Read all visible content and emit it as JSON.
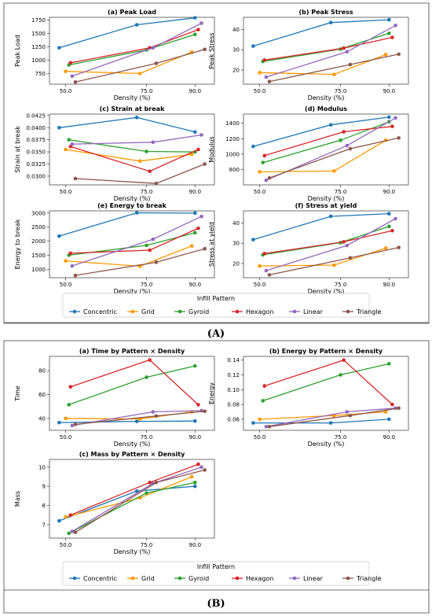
{
  "colors": {
    "Concentric": "#1f77b4",
    "Grid": "#ff9900",
    "Gyroid": "#2ca02c",
    "Hexagon": "#d62728",
    "Linear": "#9467bd",
    "Triangle": "#8c564b"
  },
  "panels": [
    {
      "label": "(A)",
      "legend_title": "Infill Pattern",
      "legend_entries": [
        "Concentric",
        "Grid",
        "Gyroid",
        "Hexagon",
        "Linear",
        "Triangle"
      ]
    },
    {
      "label": "(B)",
      "legend_title": "Infill Pattern",
      "legend_entries": [
        "Concentric",
        "Grid",
        "Gyroid",
        "Hexagon",
        "Linear",
        "Triangle"
      ]
    }
  ],
  "chart_data": [
    {
      "type": "line",
      "panel": "A",
      "title": "(a) Peak Load",
      "xlabel": "Density (%)",
      "ylabel": "Peak Load",
      "xticks": [
        "50.0",
        "75.0",
        "90.0"
      ],
      "ylim": [
        550,
        1800
      ],
      "yticks": [
        "750",
        "1000",
        "1250",
        "1500",
        "1750"
      ],
      "series": [
        {
          "name": "Concentric",
          "x": [
            48,
            72,
            90
          ],
          "y": [
            1230,
            1660,
            1790
          ]
        },
        {
          "name": "Grid",
          "x": [
            50,
            73,
            89
          ],
          "y": [
            790,
            750,
            1150
          ]
        },
        {
          "name": "Gyroid",
          "x": [
            51,
            75,
            90
          ],
          "y": [
            910,
            1190,
            1480
          ]
        },
        {
          "name": "Hexagon",
          "x": [
            51.5,
            76,
            91
          ],
          "y": [
            950,
            1230,
            1570
          ]
        },
        {
          "name": "Linear",
          "x": [
            52,
            77,
            92
          ],
          "y": [
            700,
            1230,
            1690
          ]
        },
        {
          "name": "Triangle",
          "x": [
            53,
            78,
            93
          ],
          "y": [
            590,
            940,
            1200
          ]
        }
      ]
    },
    {
      "type": "line",
      "panel": "A",
      "title": "(b) Peak Stress",
      "xlabel": "Density (%)",
      "ylabel": "Peak Stress",
      "xticks": [
        "50.0",
        "75.0",
        "90.0"
      ],
      "ylim": [
        13,
        46
      ],
      "yticks": [
        "20",
        "30",
        "40"
      ],
      "series": [
        {
          "name": "Concentric",
          "x": [
            48,
            72,
            90
          ],
          "y": [
            31.8,
            43.4,
            44.8
          ]
        },
        {
          "name": "Grid",
          "x": [
            50,
            73,
            89
          ],
          "y": [
            18.7,
            17.8,
            27.6
          ]
        },
        {
          "name": "Gyroid",
          "x": [
            51,
            75,
            90
          ],
          "y": [
            24.2,
            30.3,
            38.1
          ]
        },
        {
          "name": "Hexagon",
          "x": [
            51.5,
            76,
            91
          ],
          "y": [
            24.9,
            30.8,
            36.1
          ]
        },
        {
          "name": "Linear",
          "x": [
            52,
            77,
            92
          ],
          "y": [
            16.5,
            29.0,
            42.0
          ]
        },
        {
          "name": "Triangle",
          "x": [
            53,
            78,
            93
          ],
          "y": [
            14.3,
            22.7,
            27.8
          ]
        }
      ]
    },
    {
      "type": "line",
      "panel": "A",
      "title": "(c) Strain at break",
      "xlabel": "Density (%)",
      "ylabel": "Strain at break",
      "xticks": [
        "50.0",
        "75.0",
        "90.0"
      ],
      "ylim": [
        0.0282,
        0.0428
      ],
      "yticks": [
        "0.0300",
        "0.0325",
        "0.0350",
        "0.0375",
        "0.0400",
        "0.0425"
      ],
      "series": [
        {
          "name": "Concentric",
          "x": [
            48,
            72,
            90
          ],
          "y": [
            0.04,
            0.0421,
            0.0391
          ]
        },
        {
          "name": "Grid",
          "x": [
            50,
            73,
            89
          ],
          "y": [
            0.0355,
            0.0331,
            0.0345
          ]
        },
        {
          "name": "Gyroid",
          "x": [
            51,
            75,
            90
          ],
          "y": [
            0.0375,
            0.0351,
            0.035
          ]
        },
        {
          "name": "Hexagon",
          "x": [
            51.5,
            76,
            91
          ],
          "y": [
            0.0361,
            0.031,
            0.0355
          ]
        },
        {
          "name": "Linear",
          "x": [
            52,
            77,
            92
          ],
          "y": [
            0.0366,
            0.037,
            0.0385
          ]
        },
        {
          "name": "Triangle",
          "x": [
            53,
            78,
            93
          ],
          "y": [
            0.0295,
            0.0285,
            0.0325
          ]
        }
      ]
    },
    {
      "type": "line",
      "panel": "A",
      "title": "(d) Modulus",
      "xlabel": "Density (%)",
      "ylabel": "Modulus",
      "xticks": [
        "50.0",
        "75.0",
        "90.0"
      ],
      "ylim": [
        600,
        1520
      ],
      "yticks": [
        "800",
        "1000",
        "1200",
        "1400"
      ],
      "series": [
        {
          "name": "Concentric",
          "x": [
            48,
            72,
            90
          ],
          "y": [
            1100,
            1380,
            1480
          ]
        },
        {
          "name": "Grid",
          "x": [
            50,
            73,
            89
          ],
          "y": [
            770,
            780,
            1180
          ]
        },
        {
          "name": "Gyroid",
          "x": [
            51,
            75,
            90
          ],
          "y": [
            890,
            1180,
            1420
          ]
        },
        {
          "name": "Hexagon",
          "x": [
            51.5,
            76,
            91
          ],
          "y": [
            980,
            1290,
            1360
          ]
        },
        {
          "name": "Linear",
          "x": [
            52,
            77,
            92
          ],
          "y": [
            660,
            1110,
            1470
          ]
        },
        {
          "name": "Triangle",
          "x": [
            53,
            78,
            93
          ],
          "y": [
            690,
            1070,
            1210
          ]
        }
      ]
    },
    {
      "type": "line",
      "panel": "A",
      "title": "(e) Energy to break",
      "xlabel": "Density (%)",
      "ylabel": "Energy to break",
      "xticks": [
        "50.0",
        "75.0",
        "90.0"
      ],
      "ylim": [
        700,
        3080
      ],
      "yticks": [
        "1000",
        "1500",
        "2000",
        "2500",
        "3000"
      ],
      "series": [
        {
          "name": "Concentric",
          "x": [
            48,
            72,
            90
          ],
          "y": [
            2180,
            3010,
            3000
          ]
        },
        {
          "name": "Grid",
          "x": [
            50,
            73,
            89
          ],
          "y": [
            1300,
            1110,
            1830
          ]
        },
        {
          "name": "Gyroid",
          "x": [
            51,
            75,
            90
          ],
          "y": [
            1500,
            1850,
            2300
          ]
        },
        {
          "name": "Hexagon",
          "x": [
            51.5,
            76,
            91
          ],
          "y": [
            1570,
            1680,
            2460
          ]
        },
        {
          "name": "Linear",
          "x": [
            52,
            77,
            92
          ],
          "y": [
            1120,
            2070,
            2880
          ]
        },
        {
          "name": "Triangle",
          "x": [
            53,
            78,
            93
          ],
          "y": [
            780,
            1250,
            1730
          ]
        }
      ]
    },
    {
      "type": "line",
      "panel": "A",
      "title": "(f) Stress at yield",
      "xlabel": "Density (%)",
      "ylabel": "Stress at yield",
      "xticks": [
        "50.0",
        "75.0",
        "90.0"
      ],
      "ylim": [
        13,
        46
      ],
      "yticks": [
        "20",
        "30",
        "40"
      ],
      "series": [
        {
          "name": "Concentric",
          "x": [
            48,
            72,
            90
          ],
          "y": [
            31.8,
            43.3,
            44.6
          ]
        },
        {
          "name": "Grid",
          "x": [
            50,
            73,
            89
          ],
          "y": [
            18.8,
            19.2,
            27.6
          ]
        },
        {
          "name": "Gyroid",
          "x": [
            51,
            75,
            90
          ],
          "y": [
            24.3,
            30.3,
            38.3
          ]
        },
        {
          "name": "Hexagon",
          "x": [
            51.5,
            76,
            91
          ],
          "y": [
            24.9,
            30.7,
            36.2
          ]
        },
        {
          "name": "Linear",
          "x": [
            52,
            77,
            92
          ],
          "y": [
            16.5,
            28.9,
            42.1
          ]
        },
        {
          "name": "Triangle",
          "x": [
            53,
            78,
            93
          ],
          "y": [
            14.4,
            22.8,
            27.9
          ]
        }
      ]
    },
    {
      "type": "line",
      "panel": "B",
      "title": "(a) Time by Pattern × Density",
      "xlabel": "Density (%)",
      "ylabel": "Time",
      "xticks": [
        "50.0",
        "75.0",
        "90.0"
      ],
      "ylim": [
        30,
        92
      ],
      "yticks": [
        "40",
        "60",
        "80"
      ],
      "series": [
        {
          "name": "Concentric",
          "x": [
            48,
            72,
            90
          ],
          "y": [
            36.5,
            37.5,
            37.8
          ]
        },
        {
          "name": "Grid",
          "x": [
            50,
            73,
            89
          ],
          "y": [
            40.0,
            39.5,
            45.5
          ]
        },
        {
          "name": "Gyroid",
          "x": [
            51,
            75,
            90
          ],
          "y": [
            51.5,
            74.5,
            84.0
          ]
        },
        {
          "name": "Hexagon",
          "x": [
            51.5,
            76,
            91
          ],
          "y": [
            66.5,
            89.0,
            51.5
          ]
        },
        {
          "name": "Linear",
          "x": [
            52,
            77,
            92
          ],
          "y": [
            34.0,
            45.5,
            46.5
          ]
        },
        {
          "name": "Triangle",
          "x": [
            53,
            78,
            93
          ],
          "y": [
            35.0,
            42.0,
            46.0
          ]
        }
      ]
    },
    {
      "type": "line",
      "panel": "B",
      "title": "(b) Energy by Pattern × Density",
      "xlabel": "Density (%)",
      "ylabel": "Energy",
      "xticks": [
        "50.0",
        "75.0",
        "90.0"
      ],
      "ylim": [
        0.045,
        0.145
      ],
      "yticks": [
        "0.06",
        "0.08",
        "0.10",
        "0.12",
        "0.14"
      ],
      "series": [
        {
          "name": "Concentric",
          "x": [
            48,
            72,
            90
          ],
          "y": [
            0.055,
            0.055,
            0.06
          ]
        },
        {
          "name": "Grid",
          "x": [
            50,
            73,
            89
          ],
          "y": [
            0.06,
            0.065,
            0.07
          ]
        },
        {
          "name": "Gyroid",
          "x": [
            51,
            75,
            90
          ],
          "y": [
            0.085,
            0.12,
            0.135
          ]
        },
        {
          "name": "Hexagon",
          "x": [
            51.5,
            76,
            91
          ],
          "y": [
            0.105,
            0.14,
            0.08
          ]
        },
        {
          "name": "Linear",
          "x": [
            52,
            77,
            92
          ],
          "y": [
            0.05,
            0.07,
            0.075
          ]
        },
        {
          "name": "Triangle",
          "x": [
            53,
            78,
            93
          ],
          "y": [
            0.05,
            0.065,
            0.075
          ]
        }
      ]
    },
    {
      "type": "line",
      "panel": "B",
      "title": "(c) Mass by Pattern × Density",
      "xlabel": "Density (%)",
      "ylabel": "Mass",
      "xticks": [
        "50.0",
        "75.0",
        "90.0"
      ],
      "ylim": [
        6.3,
        10.4
      ],
      "yticks": [
        "7",
        "8",
        "9",
        "10"
      ],
      "series": [
        {
          "name": "Concentric",
          "x": [
            48,
            72,
            90
          ],
          "y": [
            7.2,
            8.75,
            9.0
          ]
        },
        {
          "name": "Grid",
          "x": [
            50,
            73,
            89
          ],
          "y": [
            7.4,
            8.4,
            9.5
          ]
        },
        {
          "name": "Gyroid",
          "x": [
            51,
            75,
            90
          ],
          "y": [
            6.55,
            8.65,
            9.2
          ]
        },
        {
          "name": "Hexagon",
          "x": [
            51.5,
            76,
            91
          ],
          "y": [
            7.5,
            9.2,
            10.15
          ]
        },
        {
          "name": "Linear",
          "x": [
            52,
            77,
            92
          ],
          "y": [
            6.65,
            9.15,
            10.0
          ]
        },
        {
          "name": "Triangle",
          "x": [
            53,
            78,
            93
          ],
          "y": [
            6.6,
            9.2,
            9.85
          ]
        }
      ]
    }
  ]
}
